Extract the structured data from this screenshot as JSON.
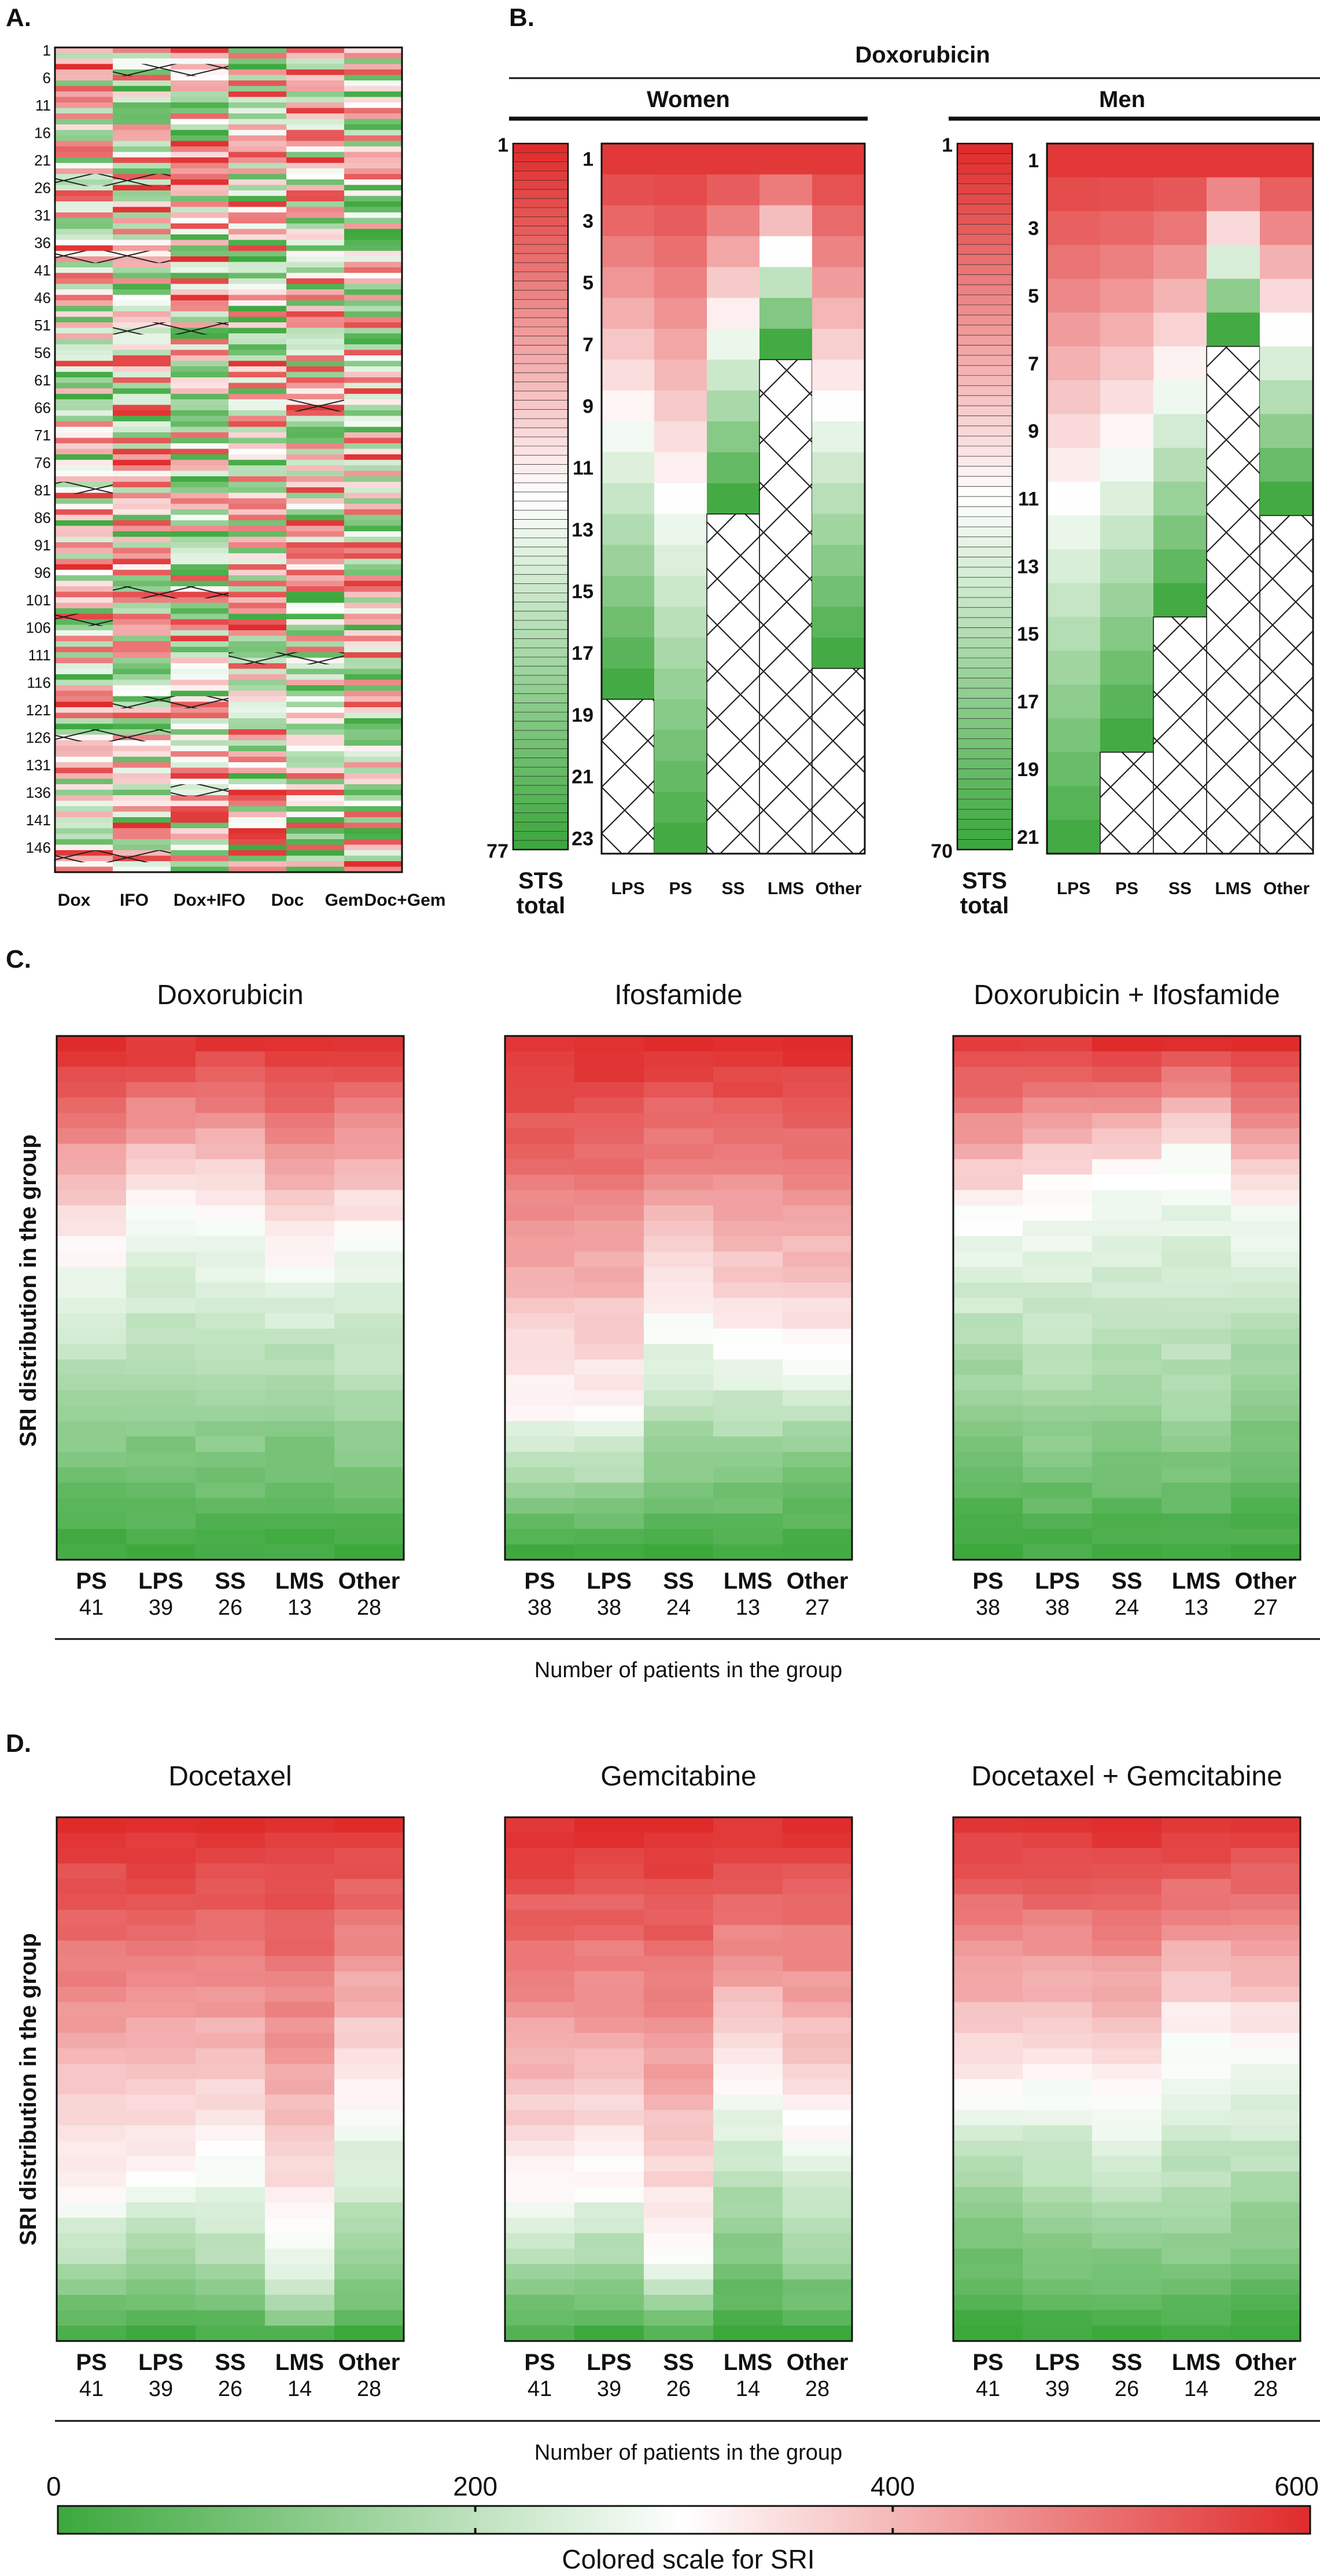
{
  "panels": {
    "a": {
      "label": "A."
    },
    "b": {
      "label": "B.",
      "drug": "Doxorubicin",
      "women": "Women",
      "men": "Men",
      "sts_total_label": [
        "STS",
        "total"
      ]
    },
    "c": {
      "label": "C.",
      "ylabel": "SRI distribution in the group",
      "xlabel": "Number of patients in the group"
    },
    "d": {
      "label": "D.",
      "ylabel": "SRI distribution in the group",
      "xlabel": "Number of patients in the group"
    },
    "scale": {
      "label": "Colored scale for SRI"
    }
  },
  "colors": {
    "low": "#3ca83c",
    "mid": "#ffffff",
    "high": "#e02b2b",
    "hatch": "#222222"
  },
  "chart_data": [
    {
      "id": "A",
      "type": "heatmap",
      "columns": [
        "Dox",
        "IFO",
        "Dox+IFO",
        "Doc",
        "Gem",
        "Doc+Gem"
      ],
      "row_tick_labels": [
        "1",
        "6",
        "11",
        "16",
        "21",
        "26",
        "31",
        "36",
        "41",
        "46",
        "51",
        "56",
        "61",
        "66",
        "71",
        "76",
        "81",
        "86",
        "91",
        "96",
        "101",
        "106",
        "111",
        "116",
        "121",
        "126",
        "131",
        "136",
        "141",
        "146"
      ],
      "n_rows": 150
    },
    {
      "id": "B-women",
      "type": "heatmap",
      "group": "Women",
      "sts_total": {
        "start": 1,
        "end": 77
      },
      "y_ticks": [
        "1",
        "3",
        "5",
        "7",
        "9",
        "11",
        "13",
        "15",
        "17",
        "19",
        "21",
        "23"
      ],
      "columns": [
        "LPS",
        "PS",
        "SS",
        "LMS",
        "Other"
      ],
      "n_rows": 23,
      "values_per_column": [
        18,
        23,
        12,
        7,
        17
      ]
    },
    {
      "id": "B-men",
      "type": "heatmap",
      "group": "Men",
      "sts_total": {
        "start": 1,
        "end": 70
      },
      "y_ticks": [
        "1",
        "3",
        "5",
        "7",
        "9",
        "11",
        "13",
        "15",
        "17",
        "19",
        "21"
      ],
      "columns": [
        "LPS",
        "PS",
        "SS",
        "LMS",
        "Other"
      ],
      "n_rows": 21,
      "values_per_column": [
        21,
        18,
        14,
        6,
        11
      ]
    },
    {
      "id": "C",
      "type": "heatmap",
      "charts": [
        {
          "title": "Doxorubicin",
          "categories": [
            "PS",
            "LPS",
            "SS",
            "LMS",
            "Other"
          ],
          "counts": [
            "41",
            "39",
            "26",
            "13",
            "28"
          ],
          "high_frac": [
            0.42,
            0.32,
            0.33,
            0.43,
            0.38
          ],
          "low_frac": [
            0.7,
            0.7,
            0.72,
            0.68,
            0.74
          ]
        },
        {
          "title": "Ifosfamide",
          "categories": [
            "PS",
            "LPS",
            "SS",
            "LMS",
            "Other"
          ],
          "counts": [
            "38",
            "38",
            "24",
            "13",
            "27"
          ],
          "high_frac": [
            0.72,
            0.72,
            0.55,
            0.6,
            0.62
          ],
          "low_frac": [
            0.85,
            0.86,
            0.78,
            0.78,
            0.76
          ]
        },
        {
          "title": "Doxorubicin + Ifosfamide",
          "categories": [
            "PS",
            "LPS",
            "SS",
            "LMS",
            "Other"
          ],
          "counts": [
            "38",
            "38",
            "24",
            "13",
            "27"
          ],
          "high_frac": [
            0.35,
            0.3,
            0.27,
            0.22,
            0.33
          ],
          "low_frac": [
            0.66,
            0.72,
            0.7,
            0.74,
            0.62
          ]
        }
      ]
    },
    {
      "id": "D",
      "type": "heatmap",
      "charts": [
        {
          "title": "Docetaxel",
          "categories": [
            "PS",
            "LPS",
            "SS",
            "LMS",
            "Other"
          ],
          "counts": [
            "41",
            "39",
            "26",
            "14",
            "28"
          ],
          "high_frac": [
            0.72,
            0.68,
            0.66,
            0.82,
            0.55
          ],
          "low_frac": [
            0.88,
            0.86,
            0.88,
            0.95,
            0.86
          ]
        },
        {
          "title": "Gemcitabine",
          "categories": [
            "PS",
            "LPS",
            "SS",
            "LMS",
            "Other"
          ],
          "counts": [
            "41",
            "39",
            "26",
            "14",
            "28"
          ],
          "high_frac": [
            0.72,
            0.7,
            0.85,
            0.52,
            0.6
          ],
          "low_frac": [
            0.88,
            0.86,
            0.92,
            0.76,
            0.84
          ]
        },
        {
          "title": "Docetaxel + Gemcitabine",
          "categories": [
            "PS",
            "LPS",
            "SS",
            "LMS",
            "Other"
          ],
          "counts": [
            "41",
            "39",
            "26",
            "14",
            "28"
          ],
          "high_frac": [
            0.53,
            0.5,
            0.55,
            0.42,
            0.45
          ],
          "low_frac": [
            0.72,
            0.76,
            0.78,
            0.8,
            0.74
          ]
        }
      ]
    },
    {
      "id": "scale",
      "type": "colorbar",
      "ticks": [
        "0",
        "200",
        "400",
        "600"
      ],
      "range": [
        0,
        600
      ],
      "label": "Colored scale for SRI"
    }
  ]
}
